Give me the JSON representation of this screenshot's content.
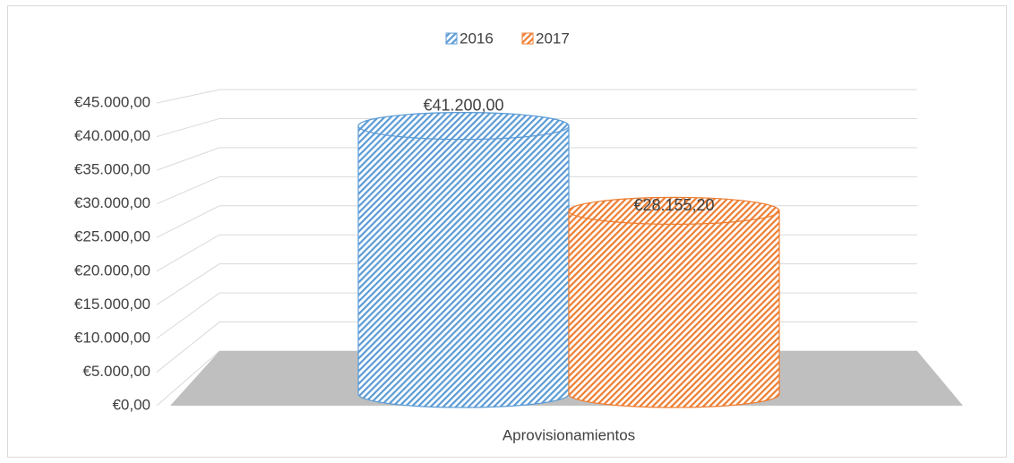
{
  "chart_data": {
    "type": "bar",
    "categories": [
      "Aprovisionamientos"
    ],
    "series": [
      {
        "name": "2016",
        "color": "#5b9bd5",
        "values": [
          41200
        ],
        "value_labels": [
          "€41.200,00"
        ]
      },
      {
        "name": "2017",
        "color": "#ed7d31",
        "values": [
          28155.2
        ],
        "value_labels": [
          "€28.155,20"
        ]
      }
    ],
    "ylim": [
      0,
      45000
    ],
    "yticks": [
      {
        "value": 0,
        "label": "€0,00"
      },
      {
        "value": 5000,
        "label": "€5.000,00"
      },
      {
        "value": 10000,
        "label": "€10.000,00"
      },
      {
        "value": 15000,
        "label": "€15.000,00"
      },
      {
        "value": 20000,
        "label": "€20.000,00"
      },
      {
        "value": 25000,
        "label": "€25.000,00"
      },
      {
        "value": 30000,
        "label": "€30.000,00"
      },
      {
        "value": 35000,
        "label": "€35.000,00"
      },
      {
        "value": 40000,
        "label": "€40.000,00"
      },
      {
        "value": 45000,
        "label": "€45.000,00"
      }
    ],
    "grid": true,
    "legend": "top"
  }
}
